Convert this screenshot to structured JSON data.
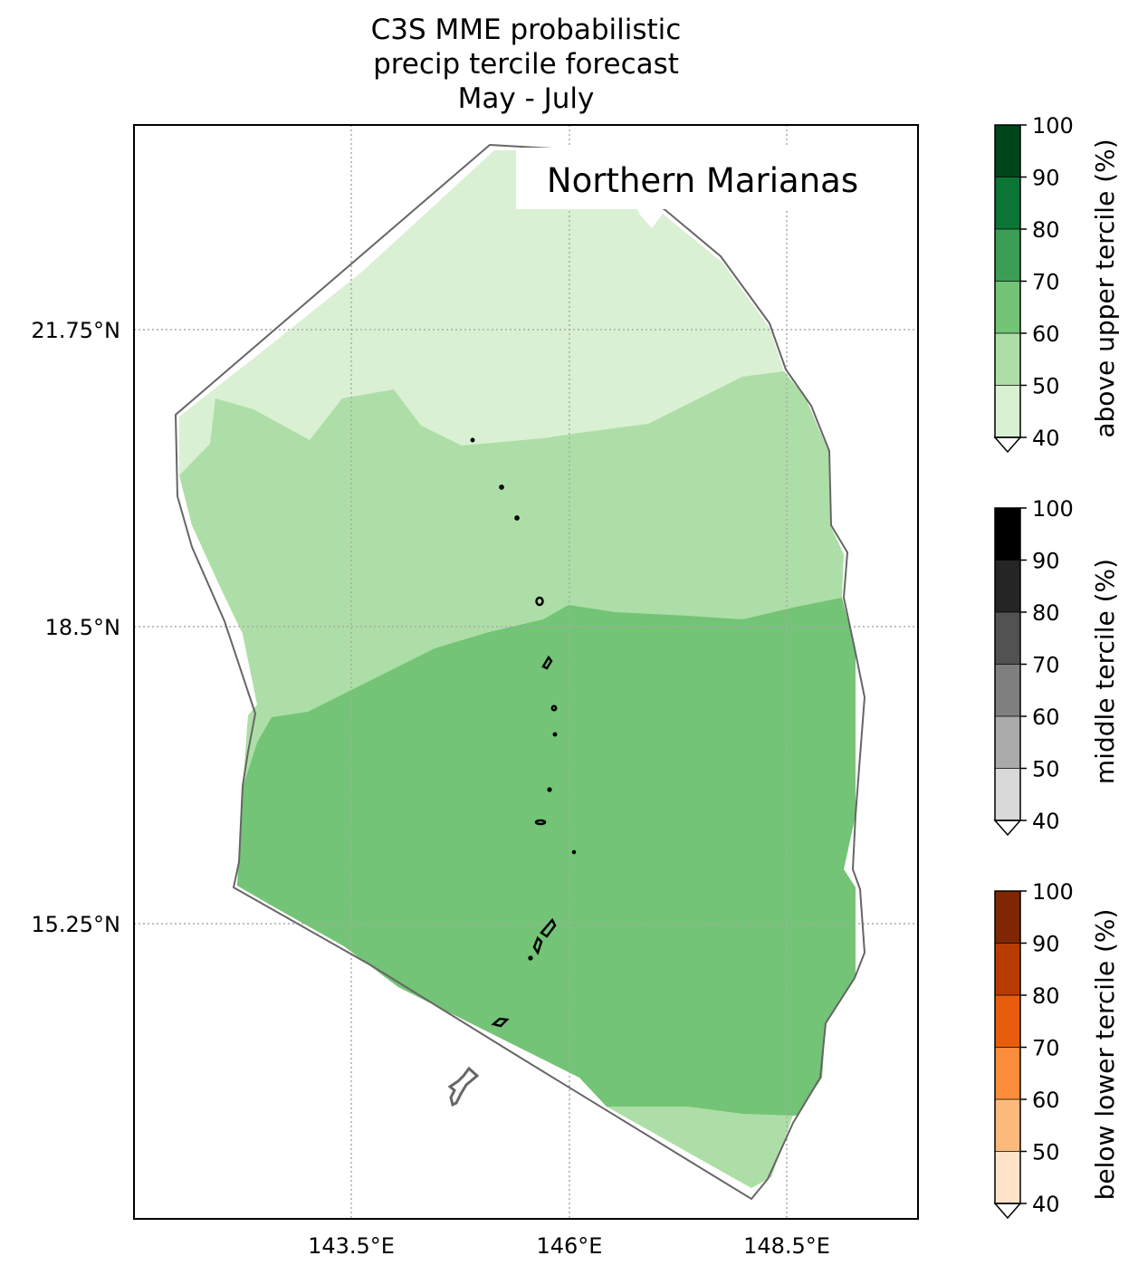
{
  "title_lines": [
    "C3S MME probabilistic",
    "precip tercile forecast",
    "May - July"
  ],
  "region_label": "Northern Marianas",
  "axes": {
    "lat_ticks": [
      "21.75°N",
      "18.5°N",
      "15.25°N"
    ],
    "lon_ticks": [
      "143.5°E",
      "146°E",
      "148.5°E"
    ],
    "grid": "dotted"
  },
  "colorbars": [
    {
      "name": "above",
      "label": "above upper tercile (%)",
      "ticks": [
        "100",
        "90",
        "80",
        "70",
        "60",
        "50",
        "40"
      ],
      "colors": [
        "#00441b",
        "#0a7534",
        "#3a9e55",
        "#73c476",
        "#aedea7",
        "#d9f0d3"
      ]
    },
    {
      "name": "middle",
      "label": "middle tercile (%)",
      "ticks": [
        "100",
        "90",
        "80",
        "70",
        "60",
        "50",
        "40"
      ],
      "colors": [
        "#000000",
        "#252525",
        "#525252",
        "#7f7f7f",
        "#aaaaaa",
        "#d9d9d9"
      ]
    },
    {
      "name": "below",
      "label": "below lower tercile (%)",
      "ticks": [
        "100",
        "90",
        "80",
        "70",
        "60",
        "50",
        "40"
      ],
      "colors": [
        "#7f2704",
        "#b83c02",
        "#e85d0c",
        "#fd8d3c",
        "#fdb97b",
        "#fee3c8"
      ]
    }
  ],
  "map_fills": {
    "category": "above upper tercile",
    "north_band": "40-50%",
    "middle_band": "50-60%",
    "south_band": "60-70%",
    "far_south_tip": "50-60%"
  },
  "colors": {
    "band_40_50": "#d9f0d3",
    "band_50_60": "#aedea7",
    "band_60_70": "#73c476",
    "outline": "#666666"
  }
}
